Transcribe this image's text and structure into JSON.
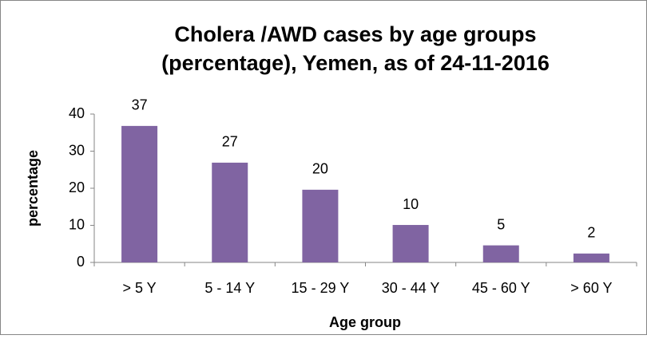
{
  "chart_data": {
    "type": "bar",
    "title": [
      "Cholera /AWD cases by age groups",
      "(percentage), Yemen, as of 24-11-2016"
    ],
    "x_label": "Age group",
    "y_label": "percentage",
    "categories": [
      "> 5 Y",
      "5 - 14 Y",
      "15 - 29 Y",
      "30 - 44 Y",
      "45 - 60 Y",
      "> 60 Y"
    ],
    "values": [
      36.8,
      26.9,
      19.6,
      10.1,
      4.6,
      2.4
    ],
    "value_labels": [
      "37",
      "27",
      "20",
      "10",
      "5",
      "2"
    ],
    "color": "#8064a2",
    "ylim": [
      0,
      40
    ],
    "yticks": [
      0,
      10,
      20,
      30,
      40
    ],
    "grid": false
  }
}
